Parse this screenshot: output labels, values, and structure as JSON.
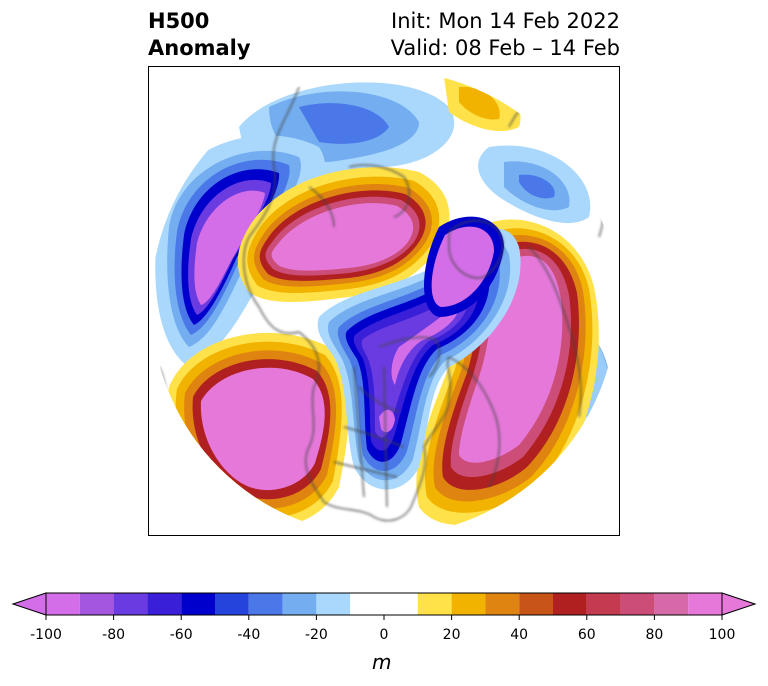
{
  "title": {
    "left_line1": "H500",
    "left_line2": "Anomaly",
    "right_line1": "Init: Mon 14 Feb 2022",
    "right_line2": "Valid: 08 Feb – 14 Feb"
  },
  "colorbar": {
    "unit": "m",
    "tick_labels": [
      "-100",
      "-80",
      "-60",
      "-40",
      "-20",
      "0",
      "20",
      "40",
      "60",
      "80",
      "100"
    ],
    "levels": [
      -100,
      -90,
      -80,
      -70,
      -60,
      -50,
      -40,
      -30,
      -20,
      -10,
      10,
      20,
      30,
      40,
      50,
      60,
      70,
      80,
      90,
      100
    ],
    "colors": [
      "#d46ee8",
      "#a456e0",
      "#6a3be0",
      "#3a1fd8",
      "#0000cc",
      "#2544dc",
      "#4a78e8",
      "#74aef0",
      "#aad8fc",
      "#ffffff",
      "#ffe24a",
      "#f2b300",
      "#df8410",
      "#c85418",
      "#b02020",
      "#c43a50",
      "#cc4e78",
      "#d66aa8",
      "#e678da"
    ],
    "extend_low_color": "#d46ee8",
    "extend_high_color": "#e678da"
  },
  "colors": {
    "coastline": "#444444",
    "frame": "#000000"
  }
}
